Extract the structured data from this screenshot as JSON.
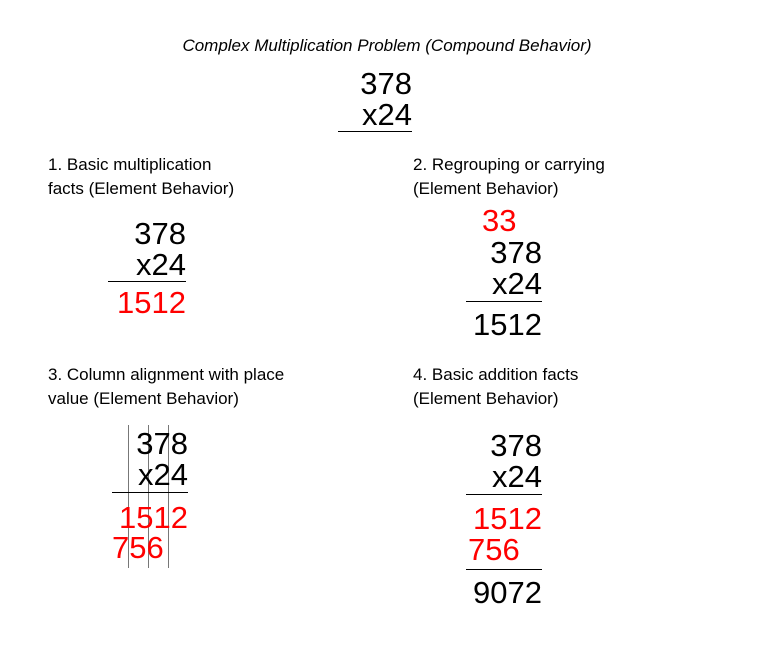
{
  "title": "Complex Multiplication Problem (Compound Behavior)",
  "colors": {
    "black": "#000000",
    "red": "#ff0000"
  },
  "main_problem": {
    "top": "378",
    "bottom": "x24"
  },
  "panel1": {
    "heading": [
      "1. Basic multiplication",
      "facts (Element Behavior)"
    ],
    "top": "378",
    "bottom": "x24",
    "result": "1512"
  },
  "panel2": {
    "heading": [
      "2. Regrouping or carrying",
      "(Element Behavior)"
    ],
    "carry": "33",
    "top": "378",
    "bottom": "x24",
    "result": "1512"
  },
  "panel3": {
    "heading": [
      "3. Column alignment with place",
      "value (Element Behavior)"
    ],
    "top": "378",
    "bottom": "x24",
    "partial1": "1512",
    "partial2": "756"
  },
  "panel4": {
    "heading": [
      "4. Basic addition facts",
      "(Element Behavior)"
    ],
    "top": "378",
    "bottom": "x24",
    "partial1": "1512",
    "partial2": "756",
    "sum": "9072"
  }
}
